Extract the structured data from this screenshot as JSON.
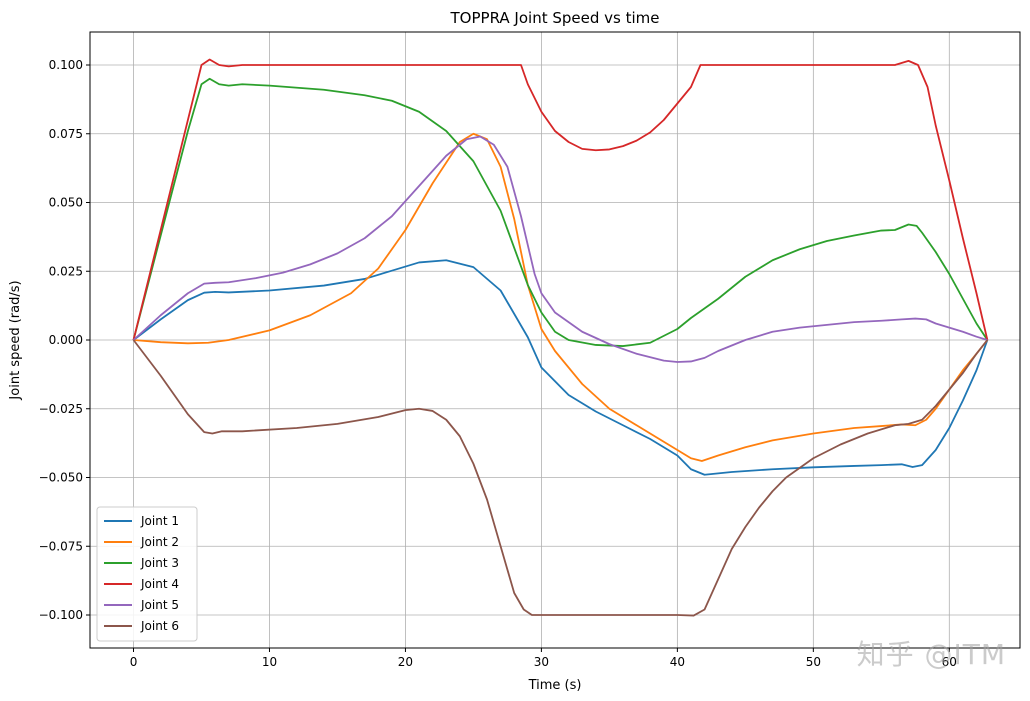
{
  "chart_data": {
    "type": "line",
    "title": "TOPPRA Joint Speed vs time",
    "xlabel": "Time (s)",
    "ylabel": "Joint speed (rad/s)",
    "xlim": [
      -3.2,
      65.2
    ],
    "ylim": [
      -0.112,
      0.112
    ],
    "xticks": [
      0,
      10,
      20,
      30,
      40,
      50,
      60
    ],
    "xtick_labels": [
      "0",
      "10",
      "20",
      "30",
      "40",
      "50",
      "60"
    ],
    "yticks": [
      0.1,
      0.075,
      0.05,
      0.025,
      0.0,
      -0.025,
      -0.05,
      -0.075,
      -0.1
    ],
    "ytick_labels": [
      "0.100",
      "0.075",
      "0.050",
      "0.025",
      "0.000",
      "−0.025",
      "−0.050",
      "−0.075",
      "−0.100"
    ],
    "grid": true,
    "legend_position": "lower-left",
    "series": [
      {
        "name": "Joint 1",
        "color": "#1f77b4",
        "points": [
          [
            0,
            0
          ],
          [
            2,
            0.0075
          ],
          [
            4,
            0.0145
          ],
          [
            5.2,
            0.0172
          ],
          [
            6,
            0.0175
          ],
          [
            7,
            0.0173
          ],
          [
            10,
            0.018
          ],
          [
            14,
            0.0198
          ],
          [
            17,
            0.0222
          ],
          [
            19,
            0.0252
          ],
          [
            21,
            0.0282
          ],
          [
            23,
            0.029
          ],
          [
            25,
            0.0265
          ],
          [
            27,
            0.018
          ],
          [
            29,
            0.001
          ],
          [
            30,
            -0.01
          ],
          [
            32,
            -0.02
          ],
          [
            34,
            -0.026
          ],
          [
            36,
            -0.031
          ],
          [
            38,
            -0.036
          ],
          [
            40,
            -0.042
          ],
          [
            41,
            -0.047
          ],
          [
            42,
            -0.049
          ],
          [
            44,
            -0.048
          ],
          [
            47,
            -0.047
          ],
          [
            50,
            -0.0463
          ],
          [
            53,
            -0.0458
          ],
          [
            55,
            -0.0455
          ],
          [
            56.5,
            -0.0452
          ],
          [
            57.3,
            -0.0462
          ],
          [
            58,
            -0.0455
          ],
          [
            59,
            -0.04
          ],
          [
            60,
            -0.032
          ],
          [
            61,
            -0.022
          ],
          [
            62,
            -0.011
          ],
          [
            62.8,
            0
          ]
        ]
      },
      {
        "name": "Joint 2",
        "color": "#ff7f0e",
        "points": [
          [
            0,
            0
          ],
          [
            2,
            -0.0008
          ],
          [
            4,
            -0.0012
          ],
          [
            5.5,
            -0.001
          ],
          [
            7,
            0.0
          ],
          [
            10,
            0.0035
          ],
          [
            13,
            0.009
          ],
          [
            16,
            0.017
          ],
          [
            18,
            0.026
          ],
          [
            20,
            0.04
          ],
          [
            22,
            0.057
          ],
          [
            24,
            0.072
          ],
          [
            25,
            0.075
          ],
          [
            26,
            0.073
          ],
          [
            27,
            0.063
          ],
          [
            28,
            0.044
          ],
          [
            29,
            0.02
          ],
          [
            30,
            0.004
          ],
          [
            31,
            -0.004
          ],
          [
            33,
            -0.016
          ],
          [
            35,
            -0.025
          ],
          [
            37,
            -0.031
          ],
          [
            39,
            -0.037
          ],
          [
            40,
            -0.04
          ],
          [
            41,
            -0.043
          ],
          [
            41.8,
            -0.044
          ],
          [
            43,
            -0.042
          ],
          [
            45,
            -0.039
          ],
          [
            47,
            -0.0365
          ],
          [
            50,
            -0.034
          ],
          [
            53,
            -0.032
          ],
          [
            55,
            -0.0313
          ],
          [
            56.5,
            -0.0307
          ],
          [
            57.5,
            -0.031
          ],
          [
            58.3,
            -0.029
          ],
          [
            59,
            -0.025
          ],
          [
            60,
            -0.018
          ],
          [
            61,
            -0.011
          ],
          [
            62,
            -0.005
          ],
          [
            62.8,
            0
          ]
        ]
      },
      {
        "name": "Joint 3",
        "color": "#2ca02c",
        "points": [
          [
            0,
            0
          ],
          [
            2,
            0.038
          ],
          [
            4,
            0.076
          ],
          [
            5,
            0.093
          ],
          [
            5.6,
            0.095
          ],
          [
            6.3,
            0.093
          ],
          [
            7,
            0.0925
          ],
          [
            8,
            0.093
          ],
          [
            10,
            0.0925
          ],
          [
            14,
            0.091
          ],
          [
            17,
            0.089
          ],
          [
            19,
            0.087
          ],
          [
            21,
            0.083
          ],
          [
            23,
            0.076
          ],
          [
            25,
            0.065
          ],
          [
            27,
            0.047
          ],
          [
            29,
            0.02
          ],
          [
            30,
            0.01
          ],
          [
            31,
            0.003
          ],
          [
            32,
            0.0
          ],
          [
            34,
            -0.0018
          ],
          [
            36,
            -0.0022
          ],
          [
            38,
            -0.001
          ],
          [
            40,
            0.004
          ],
          [
            41,
            0.008
          ],
          [
            43,
            0.015
          ],
          [
            45,
            0.023
          ],
          [
            47,
            0.029
          ],
          [
            49,
            0.033
          ],
          [
            51,
            0.036
          ],
          [
            53,
            0.038
          ],
          [
            55,
            0.0398
          ],
          [
            56,
            0.04
          ],
          [
            57,
            0.042
          ],
          [
            57.6,
            0.0415
          ],
          [
            58,
            0.039
          ],
          [
            59,
            0.032
          ],
          [
            60,
            0.024
          ],
          [
            61,
            0.015
          ],
          [
            62,
            0.006
          ],
          [
            62.8,
            0
          ]
        ]
      },
      {
        "name": "Joint 4",
        "color": "#d62728",
        "points": [
          [
            0,
            0
          ],
          [
            2,
            0.04
          ],
          [
            4,
            0.08
          ],
          [
            5,
            0.1
          ],
          [
            5.6,
            0.102
          ],
          [
            6.3,
            0.1
          ],
          [
            7,
            0.0995
          ],
          [
            8,
            0.1
          ],
          [
            10,
            0.1
          ],
          [
            20,
            0.1
          ],
          [
            28.5,
            0.1
          ],
          [
            29,
            0.093
          ],
          [
            30,
            0.083
          ],
          [
            31,
            0.076
          ],
          [
            32,
            0.072
          ],
          [
            33,
            0.0695
          ],
          [
            34,
            0.069
          ],
          [
            35,
            0.0693
          ],
          [
            36,
            0.0705
          ],
          [
            37,
            0.0725
          ],
          [
            38,
            0.0755
          ],
          [
            39,
            0.08
          ],
          [
            40,
            0.086
          ],
          [
            41,
            0.092
          ],
          [
            41.7,
            0.1
          ],
          [
            43,
            0.1
          ],
          [
            50,
            0.1
          ],
          [
            54,
            0.1
          ],
          [
            55,
            0.1
          ],
          [
            56,
            0.1
          ],
          [
            57,
            0.1015
          ],
          [
            57.7,
            0.1
          ],
          [
            58.4,
            0.092
          ],
          [
            59,
            0.078
          ],
          [
            60,
            0.058
          ],
          [
            61,
            0.037
          ],
          [
            62,
            0.017
          ],
          [
            62.8,
            0
          ]
        ]
      },
      {
        "name": "Joint 5",
        "color": "#9467bd",
        "points": [
          [
            0,
            0
          ],
          [
            2,
            0.009
          ],
          [
            4,
            0.017
          ],
          [
            5.2,
            0.0205
          ],
          [
            6,
            0.0208
          ],
          [
            7,
            0.021
          ],
          [
            9,
            0.0225
          ],
          [
            11,
            0.0245
          ],
          [
            13,
            0.0275
          ],
          [
            15,
            0.0315
          ],
          [
            17,
            0.037
          ],
          [
            19,
            0.045
          ],
          [
            21,
            0.056
          ],
          [
            23,
            0.067
          ],
          [
            24.5,
            0.073
          ],
          [
            25.5,
            0.074
          ],
          [
            26.5,
            0.071
          ],
          [
            27.5,
            0.063
          ],
          [
            28.5,
            0.045
          ],
          [
            29.5,
            0.024
          ],
          [
            30,
            0.017
          ],
          [
            31,
            0.01
          ],
          [
            33,
            0.003
          ],
          [
            35,
            -0.0015
          ],
          [
            37,
            -0.005
          ],
          [
            39,
            -0.0075
          ],
          [
            40,
            -0.008
          ],
          [
            41,
            -0.0078
          ],
          [
            42,
            -0.0065
          ],
          [
            43,
            -0.004
          ],
          [
            45,
            0.0
          ],
          [
            47,
            0.003
          ],
          [
            49,
            0.0045
          ],
          [
            51,
            0.0055
          ],
          [
            53,
            0.0065
          ],
          [
            55,
            0.007
          ],
          [
            56.5,
            0.0075
          ],
          [
            57.5,
            0.0078
          ],
          [
            58.3,
            0.0075
          ],
          [
            59,
            0.006
          ],
          [
            60,
            0.0045
          ],
          [
            61,
            0.003
          ],
          [
            62,
            0.0012
          ],
          [
            62.8,
            0
          ]
        ]
      },
      {
        "name": "Joint 6",
        "color": "#8c564b",
        "points": [
          [
            0,
            0
          ],
          [
            2,
            -0.013
          ],
          [
            4,
            -0.027
          ],
          [
            5.2,
            -0.0335
          ],
          [
            5.8,
            -0.034
          ],
          [
            6.5,
            -0.0332
          ],
          [
            8,
            -0.0332
          ],
          [
            12,
            -0.032
          ],
          [
            15,
            -0.0305
          ],
          [
            18,
            -0.028
          ],
          [
            20,
            -0.0255
          ],
          [
            21,
            -0.025
          ],
          [
            22,
            -0.0258
          ],
          [
            23,
            -0.029
          ],
          [
            24,
            -0.035
          ],
          [
            25,
            -0.045
          ],
          [
            26,
            -0.058
          ],
          [
            27,
            -0.075
          ],
          [
            28,
            -0.092
          ],
          [
            28.7,
            -0.098
          ],
          [
            29.3,
            -0.1
          ],
          [
            30,
            -0.1
          ],
          [
            35,
            -0.1
          ],
          [
            40,
            -0.1
          ],
          [
            41.2,
            -0.1002
          ],
          [
            42,
            -0.098
          ],
          [
            43,
            -0.087
          ],
          [
            44,
            -0.076
          ],
          [
            45,
            -0.068
          ],
          [
            46,
            -0.061
          ],
          [
            47,
            -0.055
          ],
          [
            48,
            -0.05
          ],
          [
            50,
            -0.043
          ],
          [
            52,
            -0.038
          ],
          [
            54,
            -0.034
          ],
          [
            56,
            -0.031
          ],
          [
            57,
            -0.0305
          ],
          [
            58,
            -0.029
          ],
          [
            59,
            -0.024
          ],
          [
            60,
            -0.018
          ],
          [
            61,
            -0.012
          ],
          [
            62,
            -0.005
          ],
          [
            62.8,
            0
          ]
        ]
      }
    ]
  },
  "watermark": "知乎 @ITM"
}
